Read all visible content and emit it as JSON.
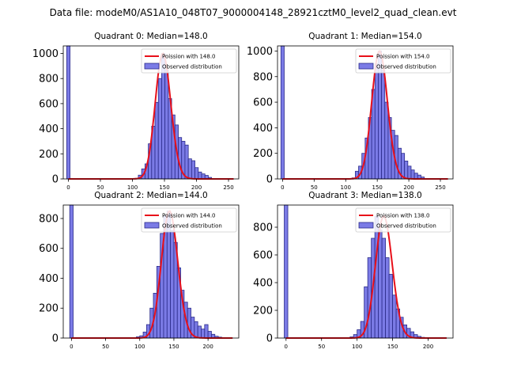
{
  "suptitle": "Data file: modeM0/AS1A10_048T07_9000004148_28921cztM0_level2_quad_clean.evt",
  "colors": {
    "bar_fill": "#7b7be6",
    "bar_edge": "#2b2b8a",
    "poisson": "#e8101a",
    "axis": "#000000"
  },
  "chart_data": [
    {
      "type": "bar",
      "title": "Quadrant 0: Median=148.0",
      "legend": {
        "placement": "top-right",
        "entries": [
          "Poission with 148.0",
          "Observed distribution"
        ]
      },
      "xlim": [
        -8,
        266
      ],
      "ylim": [
        0,
        1060
      ],
      "xticks": [
        0,
        50,
        100,
        150,
        200,
        250
      ],
      "yticks": [
        0,
        200,
        400,
        600,
        800,
        1000
      ],
      "median": 148,
      "bin_width": 5.2,
      "zero_bar": 1060,
      "bins": [
        {
          "x": 104.0,
          "v": 5
        },
        {
          "x": 109.2,
          "v": 30
        },
        {
          "x": 114.4,
          "v": 80
        },
        {
          "x": 119.6,
          "v": 120
        },
        {
          "x": 124.8,
          "v": 280
        },
        {
          "x": 130.0,
          "v": 420
        },
        {
          "x": 135.2,
          "v": 610
        },
        {
          "x": 140.4,
          "v": 800
        },
        {
          "x": 145.6,
          "v": 1000
        },
        {
          "x": 150.8,
          "v": 870
        },
        {
          "x": 156.0,
          "v": 640
        },
        {
          "x": 161.2,
          "v": 510
        },
        {
          "x": 166.4,
          "v": 430
        },
        {
          "x": 171.6,
          "v": 330
        },
        {
          "x": 176.8,
          "v": 300
        },
        {
          "x": 182.0,
          "v": 270
        },
        {
          "x": 187.2,
          "v": 160
        },
        {
          "x": 192.4,
          "v": 145
        },
        {
          "x": 197.6,
          "v": 90
        },
        {
          "x": 202.8,
          "v": 55
        },
        {
          "x": 208.0,
          "v": 40
        },
        {
          "x": 213.2,
          "v": 28
        },
        {
          "x": 218.4,
          "v": 12
        }
      ]
    },
    {
      "type": "bar",
      "title": "Quadrant 1: Median=154.0",
      "legend": {
        "placement": "top-right",
        "entries": [
          "Poission with 154.0",
          "Observed distribution"
        ]
      },
      "xlim": [
        -8,
        270
      ],
      "ylim": [
        0,
        1040
      ],
      "xticks": [
        0,
        50,
        100,
        150,
        200,
        250
      ],
      "yticks": [
        0,
        200,
        400,
        600,
        800,
        1000
      ],
      "median": 154,
      "bin_width": 5.2,
      "zero_bar": 1040,
      "bins": [
        {
          "x": 110.0,
          "v": 8
        },
        {
          "x": 115.2,
          "v": 60
        },
        {
          "x": 120.4,
          "v": 100
        },
        {
          "x": 125.6,
          "v": 200
        },
        {
          "x": 130.8,
          "v": 320
        },
        {
          "x": 136.0,
          "v": 480
        },
        {
          "x": 141.2,
          "v": 700
        },
        {
          "x": 146.4,
          "v": 900
        },
        {
          "x": 151.6,
          "v": 1000
        },
        {
          "x": 156.8,
          "v": 850
        },
        {
          "x": 162.0,
          "v": 600
        },
        {
          "x": 167.2,
          "v": 480
        },
        {
          "x": 172.4,
          "v": 380
        },
        {
          "x": 177.6,
          "v": 340
        },
        {
          "x": 182.8,
          "v": 240
        },
        {
          "x": 188.0,
          "v": 200
        },
        {
          "x": 193.2,
          "v": 140
        },
        {
          "x": 198.4,
          "v": 100
        },
        {
          "x": 203.6,
          "v": 70
        },
        {
          "x": 208.8,
          "v": 45
        },
        {
          "x": 214.0,
          "v": 30
        },
        {
          "x": 219.2,
          "v": 15
        }
      ]
    },
    {
      "type": "bar",
      "title": "Quadrant 2: Median=144.0",
      "legend": {
        "placement": "top-right",
        "entries": [
          "Poission with 144.0",
          "Observed distribution"
        ]
      },
      "xlim": [
        -12,
        245
      ],
      "ylim": [
        0,
        890
      ],
      "xticks": [
        0,
        50,
        100,
        150,
        200
      ],
      "yticks": [
        0,
        200,
        400,
        600,
        800
      ],
      "median": 144,
      "bin_width": 5.0,
      "zero_bar": 890,
      "bins": [
        {
          "x": 90.0,
          "v": 3
        },
        {
          "x": 95.0,
          "v": 8
        },
        {
          "x": 100.0,
          "v": 15
        },
        {
          "x": 105.0,
          "v": 40
        },
        {
          "x": 110.0,
          "v": 90
        },
        {
          "x": 115.0,
          "v": 200
        },
        {
          "x": 120.0,
          "v": 300
        },
        {
          "x": 125.0,
          "v": 480
        },
        {
          "x": 130.0,
          "v": 700
        },
        {
          "x": 135.0,
          "v": 820
        },
        {
          "x": 140.0,
          "v": 850
        },
        {
          "x": 145.0,
          "v": 720
        },
        {
          "x": 150.0,
          "v": 640
        },
        {
          "x": 155.0,
          "v": 470
        },
        {
          "x": 160.0,
          "v": 320
        },
        {
          "x": 165.0,
          "v": 240
        },
        {
          "x": 170.0,
          "v": 200
        },
        {
          "x": 175.0,
          "v": 140
        },
        {
          "x": 180.0,
          "v": 110
        },
        {
          "x": 185.0,
          "v": 80
        },
        {
          "x": 190.0,
          "v": 60
        },
        {
          "x": 195.0,
          "v": 90
        },
        {
          "x": 200.0,
          "v": 45
        },
        {
          "x": 205.0,
          "v": 25
        },
        {
          "x": 210.0,
          "v": 12
        },
        {
          "x": 215.0,
          "v": 6
        }
      ]
    },
    {
      "type": "bar",
      "title": "Quadrant 3: Median=138.0",
      "legend": {
        "placement": "top-right",
        "entries": [
          "Poission with 138.0",
          "Observed distribution"
        ]
      },
      "xlim": [
        -12,
        235
      ],
      "ylim": [
        0,
        960
      ],
      "xticks": [
        0,
        50,
        100,
        150,
        200
      ],
      "yticks": [
        0,
        200,
        400,
        600,
        800
      ],
      "median": 138,
      "bin_width": 5.0,
      "zero_bar": 960,
      "bins": [
        {
          "x": 85.0,
          "v": 3
        },
        {
          "x": 90.0,
          "v": 8
        },
        {
          "x": 95.0,
          "v": 25
        },
        {
          "x": 100.0,
          "v": 60
        },
        {
          "x": 105.0,
          "v": 120
        },
        {
          "x": 110.0,
          "v": 370
        },
        {
          "x": 115.0,
          "v": 580
        },
        {
          "x": 120.0,
          "v": 720
        },
        {
          "x": 125.0,
          "v": 880
        },
        {
          "x": 130.0,
          "v": 780
        },
        {
          "x": 135.0,
          "v": 720
        },
        {
          "x": 140.0,
          "v": 580
        },
        {
          "x": 145.0,
          "v": 460
        },
        {
          "x": 150.0,
          "v": 310
        },
        {
          "x": 155.0,
          "v": 210
        },
        {
          "x": 160.0,
          "v": 150
        },
        {
          "x": 165.0,
          "v": 95
        },
        {
          "x": 170.0,
          "v": 70
        },
        {
          "x": 175.0,
          "v": 45
        },
        {
          "x": 180.0,
          "v": 25
        },
        {
          "x": 185.0,
          "v": 12
        },
        {
          "x": 190.0,
          "v": 5
        }
      ]
    }
  ]
}
